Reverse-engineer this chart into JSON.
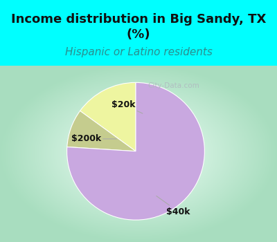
{
  "title": "Income distribution in Big Sandy, TX\n(%)",
  "subtitle": "Hispanic or Latino residents",
  "slices": [
    {
      "label": "$20k",
      "value": 15,
      "color": "#eef5a0"
    },
    {
      "label": "$200k",
      "value": 9,
      "color": "#c5cc8e"
    },
    {
      "label": "$40k",
      "value": 76,
      "color": "#c9a8e0"
    }
  ],
  "title_fontsize": 13,
  "subtitle_fontsize": 11,
  "title_color": "#111111",
  "subtitle_color": "#2a8f8f",
  "label_fontsize": 9,
  "watermark": "City-Data.com",
  "startangle": 90,
  "label_positions": {
    "$20k": [
      -0.18,
      0.68
    ],
    "$200k": [
      -0.72,
      0.18
    ],
    "$40k": [
      0.62,
      -0.88
    ]
  },
  "arrow_xy": {
    "$20k": [
      0.1,
      0.55
    ],
    "$200k": [
      -0.28,
      0.18
    ],
    "$40k": [
      0.3,
      -0.65
    ]
  }
}
